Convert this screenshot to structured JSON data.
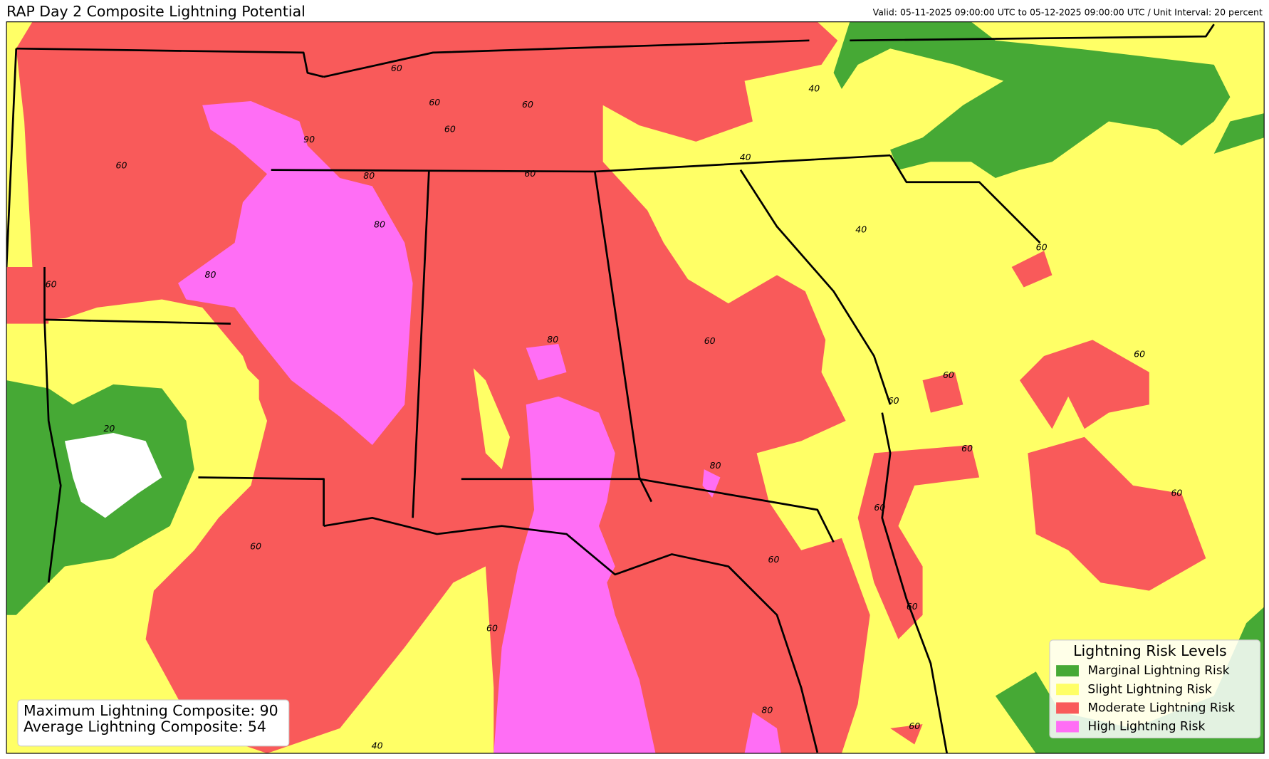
{
  "header": {
    "title": "RAP Day 2 Composite Lightning Potential",
    "valid": "Valid: 05-11-2025 09:00:00 UTC to 05-12-2025 09:00:00 UTC / Unit Interval: 20 percent"
  },
  "legend": {
    "title": "Lightning Risk Levels",
    "items": [
      {
        "label": "Marginal Lightning Risk",
        "color": "#46a935"
      },
      {
        "label": "Slight Lightning Risk",
        "color": "#ffff66"
      },
      {
        "label": "Moderate Lightning Risk",
        "color": "#f95a5a"
      },
      {
        "label": "High Lightning Risk",
        "color": "#ff6ef5"
      }
    ]
  },
  "stats": {
    "lines": [
      "Maximum Lightning Composite: 90",
      "Average Lightning Composite: 54"
    ]
  },
  "contour_labels": [
    "60",
    "60",
    "60",
    "60",
    "60",
    "90",
    "80",
    "80",
    "60",
    "40",
    "40",
    "40",
    "60",
    "80",
    "60",
    "80",
    "60",
    "60",
    "60",
    "60",
    "20",
    "60",
    "80",
    "60",
    "60",
    "60",
    "60",
    "60",
    "60",
    "80",
    "60",
    "40"
  ]
}
